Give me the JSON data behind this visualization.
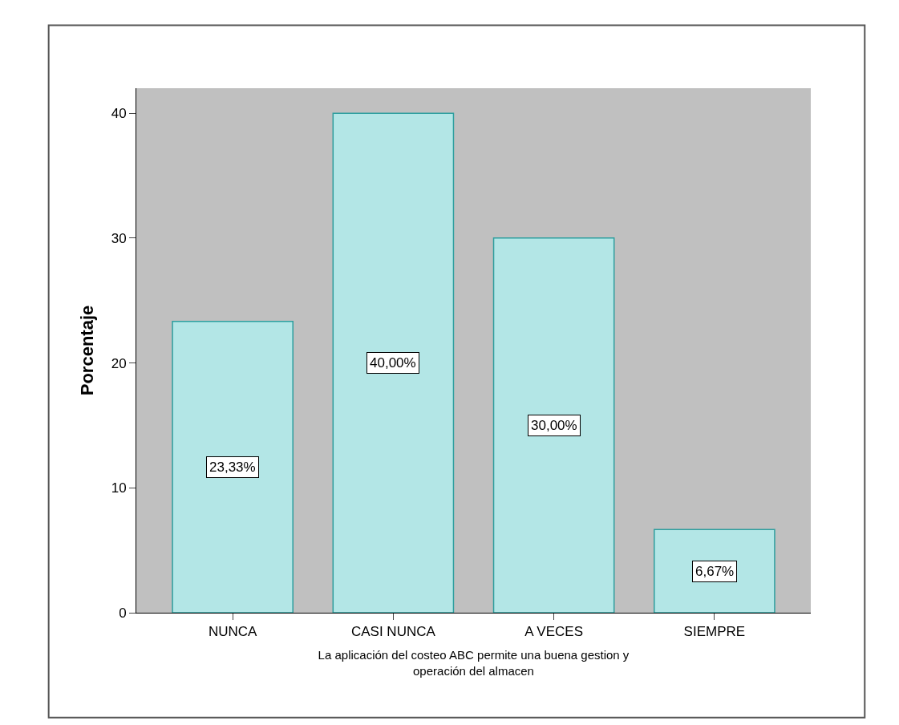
{
  "chart_data": {
    "type": "bar",
    "categories": [
      "NUNCA",
      "CASI NUNCA",
      "A VECES",
      "SIEMPRE"
    ],
    "values": [
      23.33,
      40.0,
      30.0,
      6.67
    ],
    "value_labels": [
      "23,33%",
      "40,00%",
      "30,00%",
      "6,67%"
    ],
    "color": "#b3e6e6",
    "ylabel": "Porcentaje",
    "xlabel": "La aplicación del costeo ABC permite una buena gestion y\noperación del almacen",
    "ylim": [
      0,
      42
    ],
    "yticks": [
      0,
      10,
      20,
      30,
      40
    ],
    "grid": false
  }
}
